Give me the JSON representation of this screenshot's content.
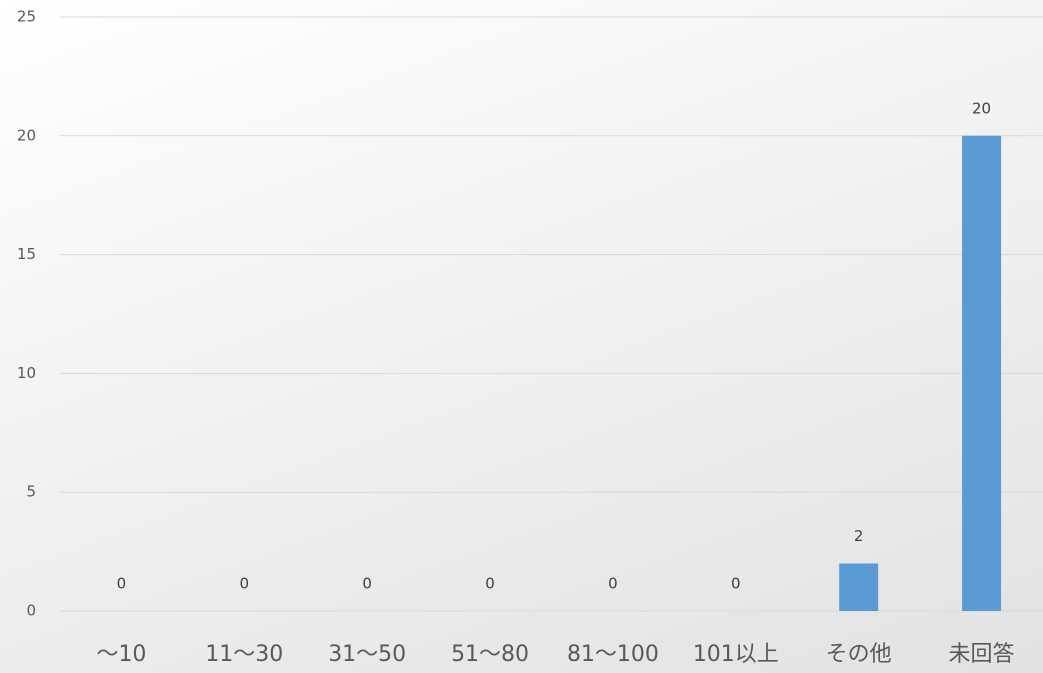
{
  "chart_data": {
    "type": "bar",
    "title": "",
    "xlabel": "",
    "ylabel": "",
    "categories": [
      "～10",
      "11～30",
      "31～50",
      "51～80",
      "81～100",
      "101以上",
      "その他",
      "未回答"
    ],
    "values": [
      0,
      0,
      0,
      0,
      0,
      0,
      2,
      20
    ],
    "data_labels": [
      "0",
      "0",
      "0",
      "0",
      "0",
      "0",
      "2",
      "20"
    ],
    "ylim": [
      0,
      25
    ],
    "yticks": [
      0,
      5,
      10,
      15,
      20,
      25
    ],
    "ytick_labels": [
      "0",
      "5",
      "10",
      "15",
      "20",
      "25"
    ],
    "grid": true,
    "legend": "none",
    "bar_color": "#5b9bd5",
    "gridline_color": "#d9d9d9",
    "tick_label_color": "#595959"
  }
}
